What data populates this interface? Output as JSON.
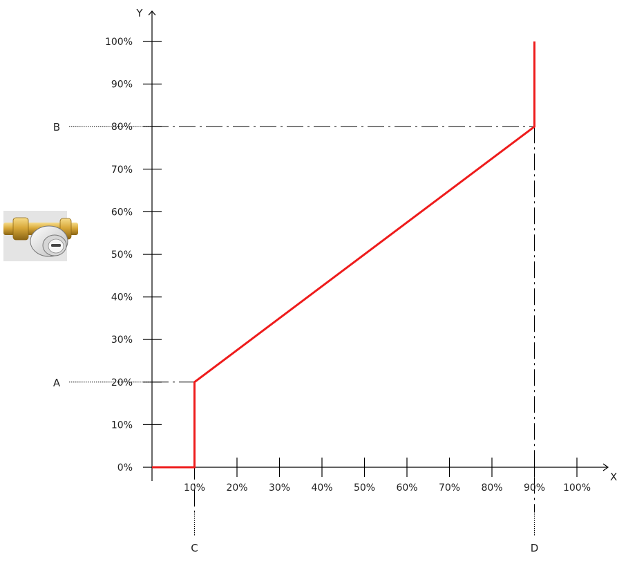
{
  "chart_data": {
    "type": "line",
    "x_axis": {
      "label": "X",
      "min": 0,
      "max": 100,
      "ticks": [
        10,
        20,
        30,
        40,
        50,
        60,
        70,
        80,
        90,
        100
      ],
      "tick_labels": [
        "10%",
        "20%",
        "30%",
        "40%",
        "50%",
        "60%",
        "70%",
        "80%",
        "90%",
        "100%"
      ]
    },
    "y_axis": {
      "label": "Y",
      "min": 0,
      "max": 100,
      "ticks": [
        0,
        10,
        20,
        30,
        40,
        50,
        60,
        70,
        80,
        90,
        100
      ],
      "tick_labels": [
        "0%",
        "10%",
        "20%",
        "30%",
        "40%",
        "50%",
        "60%",
        "70%",
        "80%",
        "90%",
        "100%"
      ]
    },
    "series": [
      {
        "color": "#ee1c1c",
        "points": [
          {
            "x": 0,
            "y": 0
          },
          {
            "x": 10,
            "y": 0
          },
          {
            "x": 10,
            "y": 20
          },
          {
            "x": 90,
            "y": 80
          },
          {
            "x": 90,
            "y": 100
          }
        ]
      }
    ],
    "reference_lines": [
      {
        "label": "A",
        "orientation": "horizontal",
        "value": 20
      },
      {
        "label": "B",
        "orientation": "horizontal",
        "value": 80
      },
      {
        "label": "C",
        "orientation": "vertical",
        "value": 10
      },
      {
        "label": "D",
        "orientation": "vertical",
        "value": 90
      }
    ],
    "grid": false,
    "legend": "none"
  },
  "icon": "thermostatic-valve-icon"
}
